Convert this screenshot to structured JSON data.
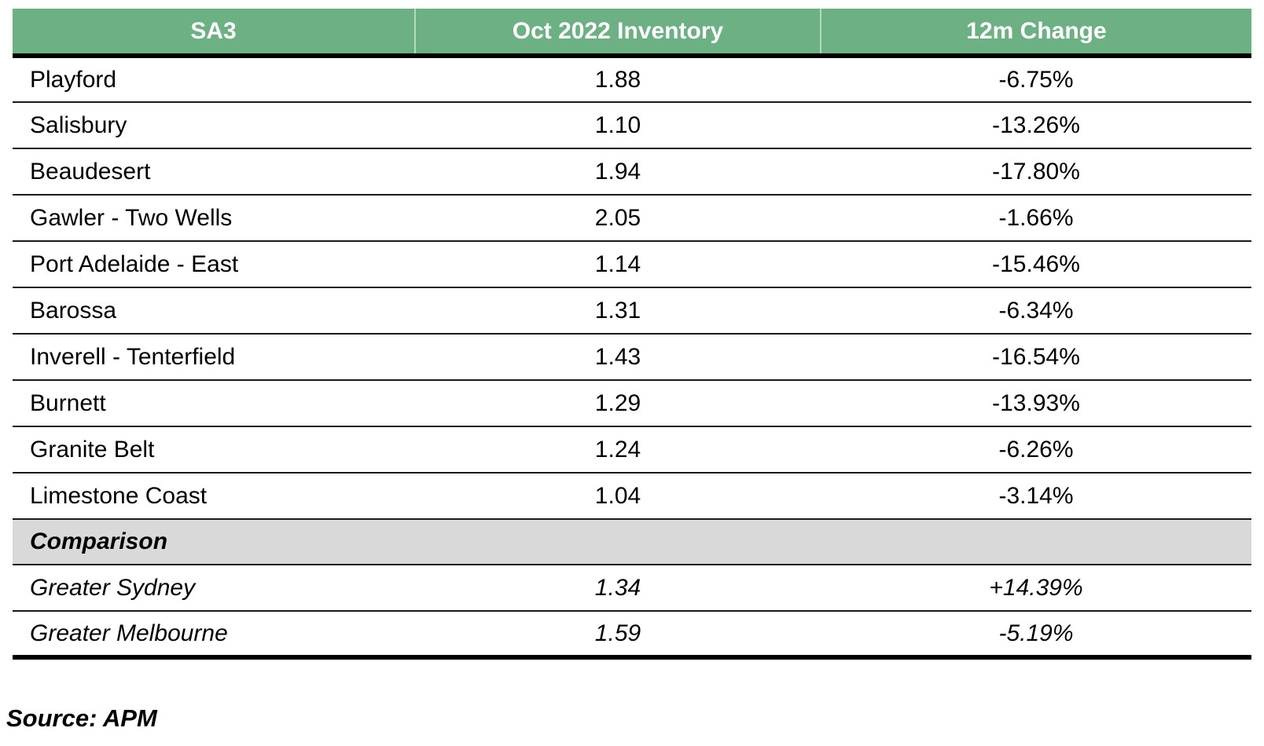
{
  "table": {
    "columns": [
      {
        "label": "SA3"
      },
      {
        "label": "Oct 2022 Inventory"
      },
      {
        "label": "12m Change"
      }
    ],
    "rows": [
      {
        "sa3": "Playford",
        "inventory": "1.88",
        "change": "-6.75%"
      },
      {
        "sa3": "Salisbury",
        "inventory": "1.10",
        "change": "-13.26%"
      },
      {
        "sa3": "Beaudesert",
        "inventory": "1.94",
        "change": "-17.80%"
      },
      {
        "sa3": "Gawler - Two Wells",
        "inventory": "2.05",
        "change": "-1.66%"
      },
      {
        "sa3": "Port Adelaide - East",
        "inventory": "1.14",
        "change": "-15.46%"
      },
      {
        "sa3": "Barossa",
        "inventory": "1.31",
        "change": "-6.34%"
      },
      {
        "sa3": "Inverell - Tenterfield",
        "inventory": "1.43",
        "change": "-16.54%"
      },
      {
        "sa3": "Burnett",
        "inventory": "1.29",
        "change": "-13.93%"
      },
      {
        "sa3": "Granite Belt",
        "inventory": "1.24",
        "change": "-6.26%"
      },
      {
        "sa3": "Limestone Coast",
        "inventory": "1.04",
        "change": "-3.14%"
      }
    ],
    "section_label": "Comparison",
    "comparison_rows": [
      {
        "sa3": "Greater Sydney",
        "inventory": "1.34",
        "change": "+14.39%"
      },
      {
        "sa3": "Greater Melbourne",
        "inventory": "1.59",
        "change": "-5.19%"
      }
    ]
  },
  "footer": {
    "source": "Source: APM"
  },
  "colors": {
    "header_bg": "#6CB083",
    "header_text": "#FFFFFF",
    "section_bg": "#D9D9D9",
    "row_line": "#1A1A1A",
    "thick_line": "#000000"
  },
  "chart_data": {
    "type": "table",
    "title": "",
    "columns": [
      "SA3",
      "Oct 2022 Inventory",
      "12m Change"
    ],
    "rows": [
      [
        "Playford",
        1.88,
        "-6.75%"
      ],
      [
        "Salisbury",
        1.1,
        "-13.26%"
      ],
      [
        "Beaudesert",
        1.94,
        "-17.80%"
      ],
      [
        "Gawler - Two Wells",
        2.05,
        "-1.66%"
      ],
      [
        "Port Adelaide - East",
        1.14,
        "-15.46%"
      ],
      [
        "Barossa",
        1.31,
        "-6.34%"
      ],
      [
        "Inverell - Tenterfield",
        1.43,
        "-16.54%"
      ],
      [
        "Burnett",
        1.29,
        "-13.93%"
      ],
      [
        "Granite Belt",
        1.24,
        "-6.26%"
      ],
      [
        "Limestone Coast",
        1.04,
        "-3.14%"
      ],
      [
        "Comparison",
        "",
        ""
      ],
      [
        "Greater Sydney",
        1.34,
        "+14.39%"
      ],
      [
        "Greater Melbourne",
        1.59,
        "-5.19%"
      ]
    ],
    "source": "Source: APM"
  }
}
